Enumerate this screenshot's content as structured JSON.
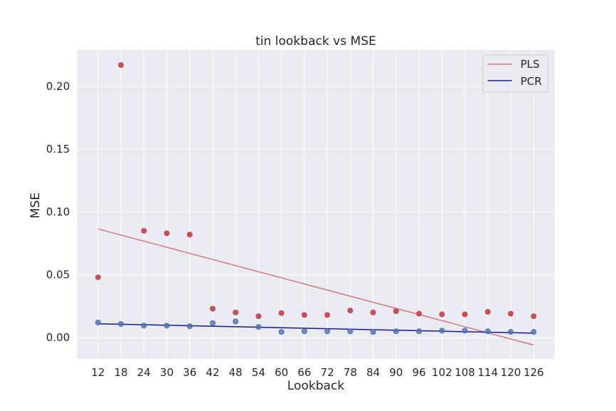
{
  "chart_data": {
    "type": "scatter",
    "title": "tin lookback vs MSE",
    "xlabel": "Lookback",
    "ylabel": "MSE",
    "x": [
      12,
      18,
      24,
      30,
      36,
      42,
      48,
      54,
      60,
      66,
      72,
      78,
      84,
      90,
      96,
      102,
      108,
      114,
      120,
      126
    ],
    "x_ticks": [
      "12",
      "18",
      "24",
      "30",
      "36",
      "42",
      "48",
      "54",
      "60",
      "66",
      "72",
      "78",
      "84",
      "90",
      "96",
      "102",
      "108",
      "114",
      "120",
      "126"
    ],
    "y_ticks": [
      "0.00",
      "0.05",
      "0.10",
      "0.15",
      "0.20"
    ],
    "y_tick_values": [
      0.0,
      0.05,
      0.1,
      0.15,
      0.2
    ],
    "xlim": [
      6.5,
      131.5
    ],
    "ylim": [
      -0.017,
      0.229
    ],
    "grid": true,
    "legend_position": "top-right",
    "series": [
      {
        "name": "PLS",
        "color": "#c44e52",
        "line_color": "#d47a7c",
        "values": [
          0.048,
          0.217,
          0.085,
          0.083,
          0.082,
          0.023,
          0.02,
          0.017,
          0.0195,
          0.018,
          0.018,
          0.0215,
          0.02,
          0.021,
          0.019,
          0.0185,
          0.0185,
          0.0205,
          0.019,
          0.017
        ],
        "trend": [
          0.0865,
          -0.006
        ]
      },
      {
        "name": "PCR",
        "color": "#4c72b0",
        "line_color": "#1a1a8c",
        "values": [
          0.012,
          0.0108,
          0.0095,
          0.0095,
          0.009,
          0.0115,
          0.0128,
          0.0085,
          0.0045,
          0.005,
          0.005,
          0.005,
          0.0045,
          0.005,
          0.005,
          0.0055,
          0.0055,
          0.005,
          0.0045,
          0.0045
        ],
        "trend": [
          0.011,
          0.0035
        ]
      }
    ]
  }
}
